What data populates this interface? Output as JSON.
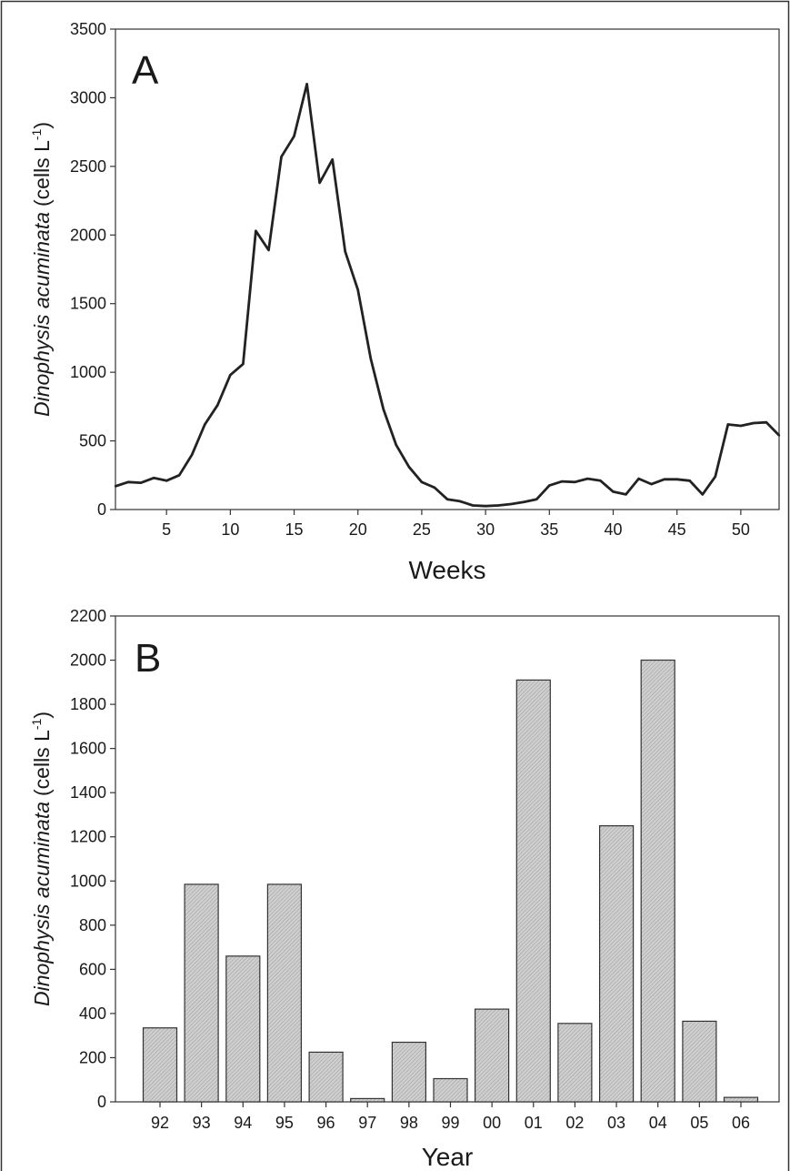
{
  "chart_data": [
    {
      "type": "line",
      "panel_label": "A",
      "xlabel": "Weeks",
      "ylabel": {
        "species": "Dinophysis acuminata",
        "unit_open": "(cells L",
        "unit_exponent": "-1",
        "unit_close": ")"
      },
      "xlim": [
        1,
        53
      ],
      "ylim": [
        0,
        3500
      ],
      "x_ticks": [
        5,
        10,
        15,
        20,
        25,
        30,
        35,
        40,
        45,
        50
      ],
      "y_ticks": [
        0,
        500,
        1000,
        1500,
        2000,
        2500,
        3000,
        3500
      ],
      "grid": false,
      "series": [
        {
          "x": [
            1,
            2,
            3,
            4,
            5,
            6,
            7,
            8,
            9,
            10,
            11,
            12,
            13,
            14,
            15,
            16,
            17,
            18,
            19,
            20,
            21,
            22,
            23,
            24,
            25,
            26,
            27,
            28,
            29,
            30,
            31,
            32,
            33,
            34,
            35,
            36,
            37,
            38,
            39,
            40,
            41,
            42,
            43,
            44,
            45,
            46,
            47,
            48,
            49,
            50,
            51,
            52,
            53
          ],
          "y": [
            170,
            200,
            195,
            230,
            210,
            250,
            400,
            620,
            760,
            980,
            1060,
            2030,
            1890,
            2570,
            2720,
            3100,
            2380,
            2550,
            1880,
            1600,
            1100,
            730,
            470,
            310,
            200,
            160,
            75,
            60,
            30,
            25,
            30,
            40,
            55,
            75,
            175,
            205,
            200,
            225,
            210,
            130,
            110,
            225,
            185,
            220,
            220,
            210,
            110,
            240,
            620,
            610,
            630,
            635,
            540
          ]
        }
      ],
      "colors": {
        "line": "#222222"
      }
    },
    {
      "type": "bar",
      "panel_label": "B",
      "xlabel": "Year",
      "ylabel": {
        "species": "Dinophysis acuminata",
        "unit_open": "(cells L",
        "unit_exponent": "-1",
        "unit_close": ")"
      },
      "categories": [
        "92",
        "93",
        "94",
        "95",
        "96",
        "97",
        "98",
        "99",
        "00",
        "01",
        "02",
        "03",
        "04",
        "05",
        "06"
      ],
      "values": [
        335,
        985,
        660,
        985,
        225,
        15,
        270,
        105,
        420,
        1910,
        355,
        1250,
        2000,
        365,
        20
      ],
      "ylim": [
        0,
        2200
      ],
      "y_ticks": [
        0,
        200,
        400,
        600,
        800,
        1000,
        1200,
        1400,
        1600,
        1800,
        2000,
        2200
      ],
      "grid": false,
      "colors": {
        "bar_fill": "#c4c4c4",
        "bar_stroke": "#333333"
      }
    }
  ]
}
